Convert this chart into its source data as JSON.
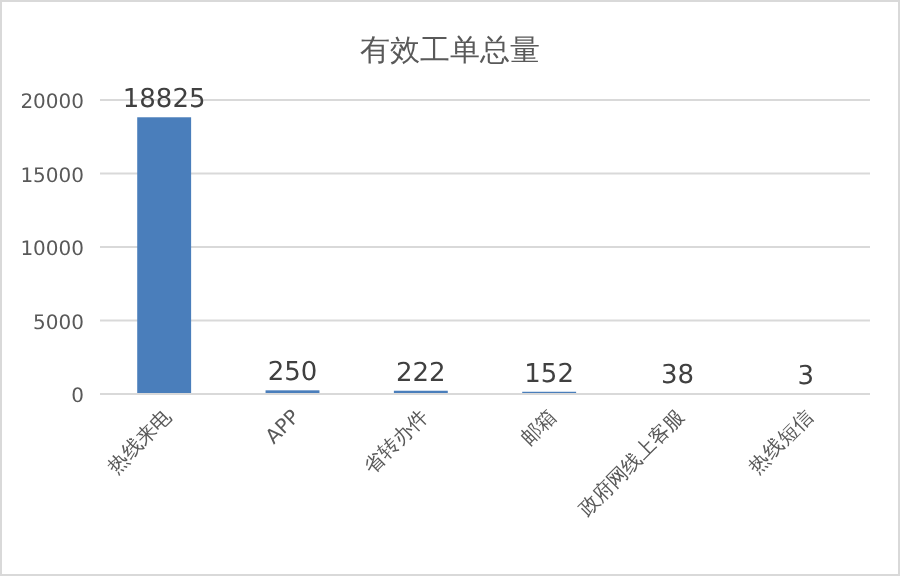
{
  "chart_data": {
    "type": "bar",
    "title": "有效工单总量",
    "categories": [
      "热线来电",
      "APP",
      "省转办件",
      "邮箱",
      "政府网线上客服",
      "热线短信"
    ],
    "values": [
      18825,
      250,
      222,
      152,
      38,
      3
    ],
    "color": "#4a7ebb",
    "ylim": [
      0,
      20000
    ],
    "yticks": [
      0,
      5000,
      10000,
      15000,
      20000
    ],
    "grid": "y",
    "data_labels": true
  }
}
